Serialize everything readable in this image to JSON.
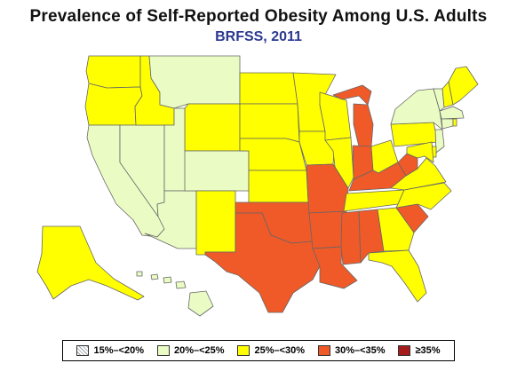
{
  "title": "Prevalence of Self-Reported Obesity Among U.S. Adults",
  "subtitle": "BRFSS, 2011",
  "colors": {
    "subtitle": "#2b3990",
    "border": "#666666",
    "bins": [
      "hatch",
      "#eafcc4",
      "#ffff00",
      "#f05a28",
      "#a51c1c"
    ]
  },
  "legend": {
    "items": [
      {
        "label": "15%–<20%",
        "bin": 0
      },
      {
        "label": "20%–<25%",
        "bin": 1
      },
      {
        "label": "25%–<30%",
        "bin": 2
      },
      {
        "label": "30%–<35%",
        "bin": 3
      },
      {
        "label": "≥35%",
        "bin": 4
      }
    ]
  },
  "states": {
    "WA": 2,
    "OR": 2,
    "CA": 1,
    "NV": 1,
    "ID": 2,
    "MT": 1,
    "WY": 2,
    "UT": 1,
    "AZ": 1,
    "CO": 1,
    "NM": 2,
    "ND": 2,
    "SD": 2,
    "NE": 2,
    "KS": 2,
    "OK": 3,
    "TX": 3,
    "MN": 2,
    "IA": 2,
    "MO": 3,
    "AR": 3,
    "LA": 3,
    "WI": 2,
    "IL": 2,
    "MI": 3,
    "IN": 3,
    "OH": 2,
    "KY": 3,
    "TN": 2,
    "MS": 3,
    "AL": 3,
    "GA": 2,
    "FL": 2,
    "SC": 3,
    "NC": 2,
    "VA": 2,
    "WV": 3,
    "PA": 2,
    "NY": 1,
    "VT": 1,
    "NH": 2,
    "ME": 2,
    "MA": 1,
    "CT": 1,
    "RI": 2,
    "NJ": 1,
    "DE": 2,
    "MD": 2,
    "AK": 2,
    "HI": 1
  }
}
